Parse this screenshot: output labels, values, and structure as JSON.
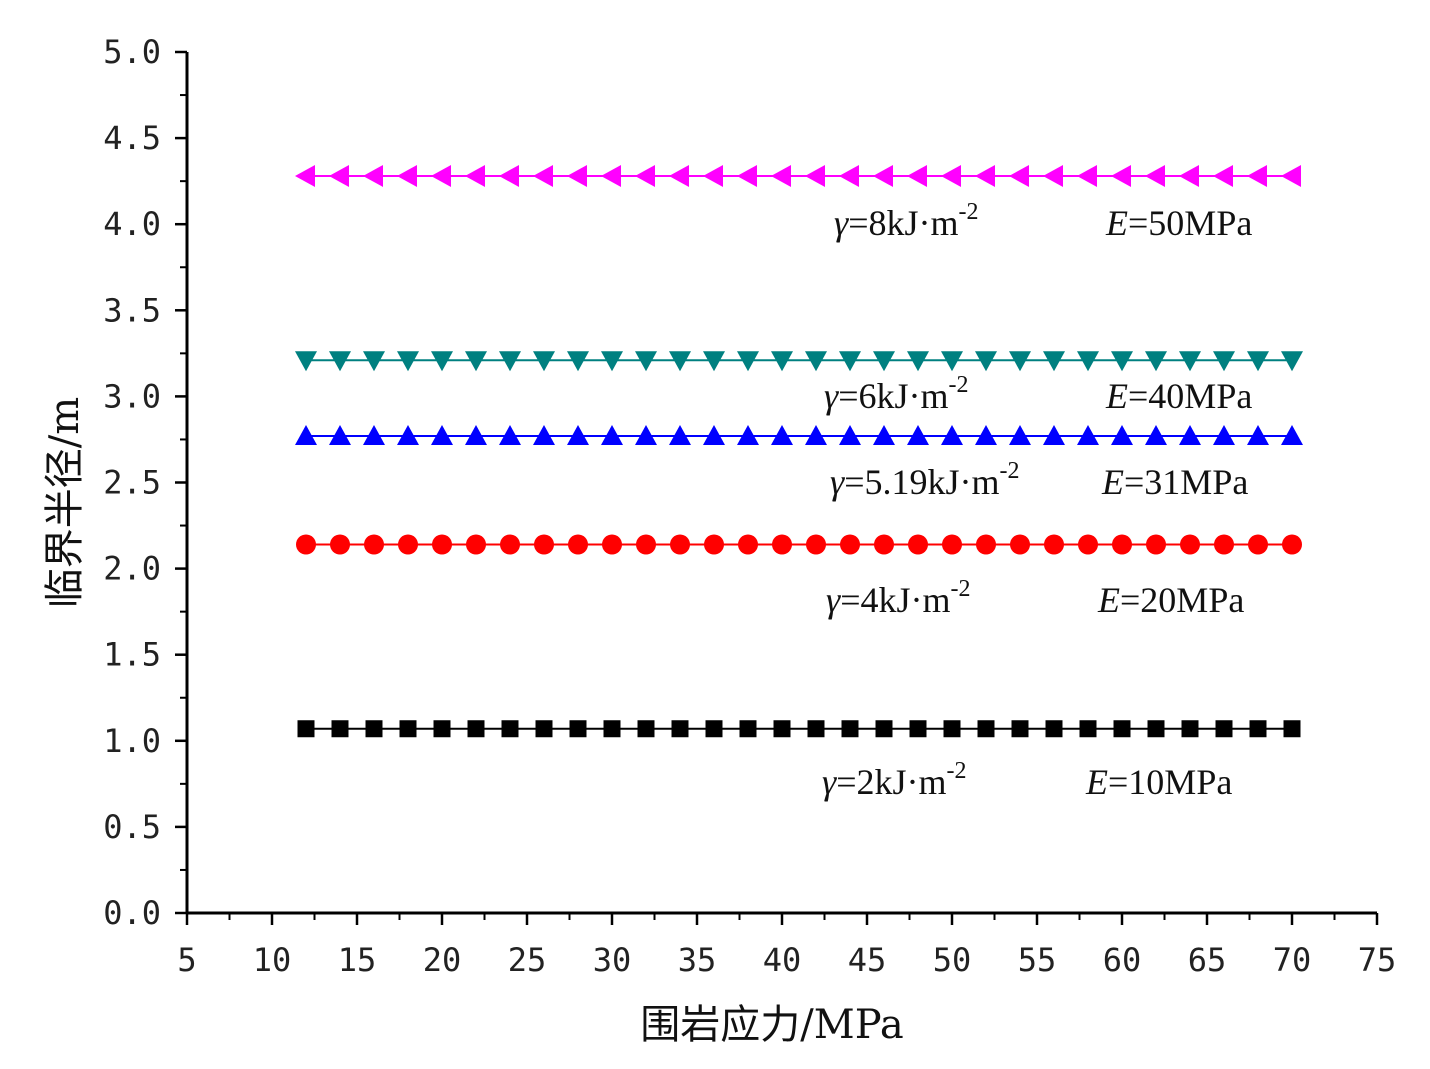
{
  "chart_data": {
    "type": "line",
    "title": "",
    "xlabel": "围岩应力/MPa",
    "ylabel": "临界半径/m",
    "xlim": [
      5,
      75
    ],
    "ylim": [
      0.0,
      5.0
    ],
    "x_ticks": [
      "5",
      "10",
      "15",
      "20",
      "25",
      "30",
      "35",
      "40",
      "45",
      "50",
      "55",
      "60",
      "65",
      "70",
      "75"
    ],
    "y_ticks": [
      "0.0",
      "0.5",
      "1.0",
      "1.5",
      "2.0",
      "2.5",
      "3.0",
      "3.5",
      "4.0",
      "4.5",
      "5.0"
    ],
    "grid": false,
    "legend": "none",
    "x": [
      12,
      14,
      16,
      18,
      20,
      22,
      24,
      26,
      28,
      30,
      32,
      34,
      36,
      38,
      40,
      42,
      44,
      46,
      48,
      50,
      52,
      54,
      56,
      58,
      60,
      62,
      64,
      66,
      68,
      70
    ],
    "series": [
      {
        "marker": "square",
        "color": "#000000",
        "values": [
          1.07,
          1.07,
          1.07,
          1.07,
          1.07,
          1.07,
          1.07,
          1.07,
          1.07,
          1.07,
          1.07,
          1.07,
          1.07,
          1.07,
          1.07,
          1.07,
          1.07,
          1.07,
          1.07,
          1.07,
          1.07,
          1.07,
          1.07,
          1.07,
          1.07,
          1.07,
          1.07,
          1.07,
          1.07,
          1.07
        ],
        "annotation": {
          "gamma_symbol": "γ",
          "gamma_value": "=2kJ·m",
          "gamma_exp": "-2",
          "e_symbol": "E",
          "e_value": "=10MPa"
        }
      },
      {
        "marker": "circle",
        "color": "#ff0000",
        "values": [
          2.14,
          2.14,
          2.14,
          2.14,
          2.14,
          2.14,
          2.14,
          2.14,
          2.14,
          2.14,
          2.14,
          2.14,
          2.14,
          2.14,
          2.14,
          2.14,
          2.14,
          2.14,
          2.14,
          2.14,
          2.14,
          2.14,
          2.14,
          2.14,
          2.14,
          2.14,
          2.14,
          2.14,
          2.14,
          2.14
        ],
        "annotation": {
          "gamma_symbol": "γ",
          "gamma_value": "=4kJ·m",
          "gamma_exp": "-2",
          "e_symbol": "E",
          "e_value": "=20MPa"
        }
      },
      {
        "marker": "triangle-up",
        "color": "#0000ff",
        "values": [
          2.77,
          2.77,
          2.77,
          2.77,
          2.77,
          2.77,
          2.77,
          2.77,
          2.77,
          2.77,
          2.77,
          2.77,
          2.77,
          2.77,
          2.77,
          2.77,
          2.77,
          2.77,
          2.77,
          2.77,
          2.77,
          2.77,
          2.77,
          2.77,
          2.77,
          2.77,
          2.77,
          2.77,
          2.77,
          2.77
        ],
        "annotation": {
          "gamma_symbol": "γ",
          "gamma_value": "=5.19kJ·m",
          "gamma_exp": "-2",
          "e_symbol": "E",
          "e_value": "=31MPa"
        }
      },
      {
        "marker": "triangle-down",
        "color": "#008080",
        "values": [
          3.21,
          3.21,
          3.21,
          3.21,
          3.21,
          3.21,
          3.21,
          3.21,
          3.21,
          3.21,
          3.21,
          3.21,
          3.21,
          3.21,
          3.21,
          3.21,
          3.21,
          3.21,
          3.21,
          3.21,
          3.21,
          3.21,
          3.21,
          3.21,
          3.21,
          3.21,
          3.21,
          3.21,
          3.21,
          3.21
        ],
        "annotation": {
          "gamma_symbol": "γ",
          "gamma_value": "=6kJ·m",
          "gamma_exp": "-2",
          "e_symbol": "E",
          "e_value": "=40MPa"
        }
      },
      {
        "marker": "triangle-left",
        "color": "#ff00ff",
        "values": [
          4.28,
          4.28,
          4.28,
          4.28,
          4.28,
          4.28,
          4.28,
          4.28,
          4.28,
          4.28,
          4.28,
          4.28,
          4.28,
          4.28,
          4.28,
          4.28,
          4.28,
          4.28,
          4.28,
          4.28,
          4.28,
          4.28,
          4.28,
          4.28,
          4.28,
          4.28,
          4.28,
          4.28,
          4.28,
          4.28
        ],
        "annotation": {
          "gamma_symbol": "γ",
          "gamma_value": "=8kJ·m",
          "gamma_exp": "-2",
          "e_symbol": "E",
          "e_value": "=50MPa"
        }
      }
    ]
  }
}
